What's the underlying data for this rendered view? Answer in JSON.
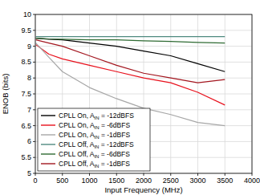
{
  "chart_data": {
    "type": "line",
    "x_label": "Input Frequency (MHz)",
    "y_label": "ENOB (bits)",
    "x": [
      10,
      250,
      500,
      1000,
      1500,
      2000,
      2500,
      3000,
      3500
    ],
    "series": [
      {
        "name": "CPLL On, AIN = -12dBFS",
        "color": "#000000",
        "values": [
          9.25,
          9.22,
          9.2,
          9.1,
          9.0,
          8.85,
          8.7,
          8.45,
          8.2
        ]
      },
      {
        "name": "CPLL On, AIN = -6dBFS",
        "color": "#e8101c",
        "values": [
          9.05,
          8.75,
          8.6,
          8.4,
          8.2,
          8.0,
          7.85,
          7.55,
          7.15
        ]
      },
      {
        "name": "CPLL On, AIN = -1dBFS",
        "color": "#a6a6a6",
        "values": [
          9.1,
          8.65,
          8.2,
          7.7,
          7.35,
          7.05,
          6.85,
          6.6,
          6.5
        ]
      },
      {
        "name": "CPLL Off, AIN = -12dBFS",
        "color": "#4f8a80",
        "values": [
          9.3,
          9.3,
          9.3,
          9.3,
          9.3,
          9.3,
          9.3,
          9.3,
          9.3
        ]
      },
      {
        "name": "CPLL Off, AIN = -6dBFS",
        "color": "#2f6b33",
        "values": [
          9.25,
          9.23,
          9.22,
          9.2,
          9.2,
          9.17,
          9.15,
          9.12,
          9.1
        ]
      },
      {
        "name": "CPLL Off, AIN = -1dBFS",
        "color": "#a3161f",
        "values": [
          9.2,
          9.1,
          9.0,
          8.7,
          8.4,
          8.15,
          8.0,
          7.85,
          7.95
        ]
      }
    ],
    "xlim": [
      0,
      4000
    ],
    "xticks": [
      0,
      500,
      1000,
      1500,
      2000,
      2500,
      3000,
      3500,
      4000
    ],
    "ylim": [
      5,
      10
    ],
    "yticks": [
      5,
      5.5,
      6,
      6.5,
      7,
      7.5,
      8,
      8.5,
      9,
      9.5,
      10
    ],
    "grid": true,
    "legend": "lower left"
  }
}
